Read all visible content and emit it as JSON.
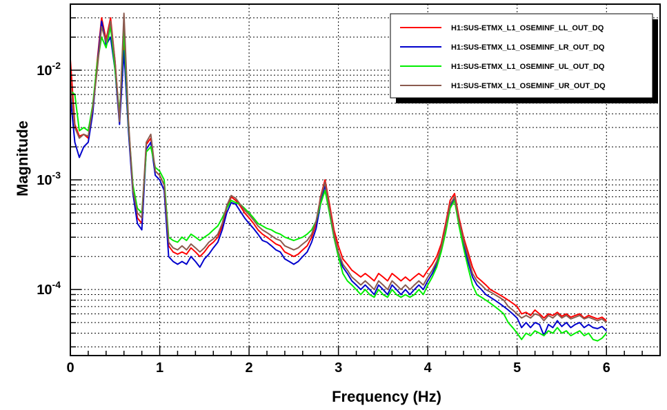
{
  "chart_data": {
    "type": "line",
    "title": "",
    "xlabel": "Frequency (Hz)",
    "ylabel": "Magnitude",
    "xlim": [
      0,
      6.6
    ],
    "ylim": [
      2.5e-05,
      0.04
    ],
    "yscale": "log",
    "grid": true,
    "legend_position": "top-right",
    "x_ticks": [
      {
        "value": 0,
        "label": "0"
      },
      {
        "value": 1,
        "label": "1"
      },
      {
        "value": 2,
        "label": "2"
      },
      {
        "value": 3,
        "label": "3"
      },
      {
        "value": 4,
        "label": "4"
      },
      {
        "value": 5,
        "label": "5"
      },
      {
        "value": 6,
        "label": "6"
      }
    ],
    "y_ticks": [
      {
        "value": 0.0001,
        "mantissa": "10",
        "exponent": "-4"
      },
      {
        "value": 0.001,
        "mantissa": "10",
        "exponent": "-3"
      },
      {
        "value": 0.01,
        "mantissa": "10",
        "exponent": "-2"
      }
    ],
    "x": [
      0.0,
      0.05,
      0.1,
      0.15,
      0.2,
      0.25,
      0.3,
      0.35,
      0.4,
      0.45,
      0.5,
      0.55,
      0.6,
      0.65,
      0.7,
      0.75,
      0.8,
      0.85,
      0.9,
      0.95,
      1.0,
      1.05,
      1.1,
      1.15,
      1.2,
      1.25,
      1.3,
      1.35,
      1.4,
      1.45,
      1.5,
      1.55,
      1.6,
      1.65,
      1.7,
      1.75,
      1.8,
      1.85,
      1.9,
      1.95,
      2.0,
      2.05,
      2.1,
      2.15,
      2.2,
      2.25,
      2.3,
      2.35,
      2.4,
      2.45,
      2.5,
      2.55,
      2.6,
      2.65,
      2.7,
      2.75,
      2.8,
      2.85,
      2.9,
      2.95,
      3.0,
      3.05,
      3.1,
      3.15,
      3.2,
      3.25,
      3.3,
      3.35,
      3.4,
      3.45,
      3.5,
      3.55,
      3.6,
      3.65,
      3.7,
      3.75,
      3.8,
      3.85,
      3.9,
      3.95,
      4.0,
      4.05,
      4.1,
      4.15,
      4.2,
      4.25,
      4.3,
      4.35,
      4.4,
      4.45,
      4.5,
      4.55,
      4.6,
      4.65,
      4.7,
      4.75,
      4.8,
      4.85,
      4.9,
      4.95,
      5.0,
      5.05,
      5.1,
      5.15,
      5.2,
      5.25,
      5.3,
      5.35,
      5.4,
      5.45,
      5.5,
      5.55,
      5.6,
      5.65,
      5.7,
      5.75,
      5.8,
      5.85,
      5.9,
      5.95,
      6.0
    ],
    "series": [
      {
        "name": "H1:SUS-ETMX_L1_OSEMINF_LL_OUT_DQ",
        "color": "#ff0000",
        "values": [
          0.0125,
          0.0032,
          0.0025,
          0.0026,
          0.0024,
          0.0045,
          0.012,
          0.03,
          0.019,
          0.03,
          0.012,
          0.0035,
          0.018,
          0.003,
          0.0008,
          0.00045,
          0.0004,
          0.0021,
          0.0024,
          0.0012,
          0.0011,
          0.0009,
          0.00025,
          0.00022,
          0.00021,
          0.00022,
          0.00021,
          0.00024,
          0.00022,
          0.0002,
          0.00022,
          0.00025,
          0.00027,
          0.0003,
          0.00038,
          0.00055,
          0.0007,
          0.00065,
          0.00058,
          0.0005,
          0.00045,
          0.0004,
          0.00035,
          0.00032,
          0.0003,
          0.00028,
          0.00026,
          0.00025,
          0.00022,
          0.00021,
          0.0002,
          0.00021,
          0.00023,
          0.00025,
          0.0003,
          0.0004,
          0.0007,
          0.001,
          0.0006,
          0.00035,
          0.00025,
          0.00019,
          0.00017,
          0.00015,
          0.00014,
          0.00013,
          0.00014,
          0.00013,
          0.00012,
          0.00014,
          0.00013,
          0.00012,
          0.00014,
          0.00013,
          0.00012,
          0.00013,
          0.00012,
          0.00013,
          0.00014,
          0.00013,
          0.00015,
          0.00017,
          0.0002,
          0.00026,
          0.0004,
          0.00065,
          0.00075,
          0.00045,
          0.0003,
          0.00022,
          0.00016,
          0.00013,
          0.00012,
          0.00011,
          0.0001,
          9.5e-05,
          9e-05,
          8.5e-05,
          8e-05,
          7.5e-05,
          7e-05,
          6e-05,
          6.2e-05,
          5.8e-05,
          6.5e-05,
          6e-05,
          5.5e-05,
          6e-05,
          5.8e-05,
          6.2e-05,
          5.7e-05,
          6e-05,
          5.6e-05,
          5.8e-05,
          6e-05,
          5.5e-05,
          5.8e-05,
          5.6e-05,
          5.4e-05,
          5.6e-05,
          5.2e-05
        ]
      },
      {
        "name": "H1:SUS-ETMX_L1_OSEMINF_LR_OUT_DQ",
        "color": "#0000cc",
        "values": [
          0.0058,
          0.0022,
          0.0016,
          0.002,
          0.0022,
          0.004,
          0.011,
          0.028,
          0.017,
          0.02,
          0.01,
          0.0032,
          0.015,
          0.0028,
          0.00075,
          0.0004,
          0.00035,
          0.0019,
          0.0022,
          0.0011,
          0.001,
          0.0008,
          0.0002,
          0.00018,
          0.00017,
          0.00018,
          0.00017,
          0.0002,
          0.00018,
          0.00016,
          0.00019,
          0.00021,
          0.00024,
          0.00027,
          0.00035,
          0.0005,
          0.00062,
          0.0006,
          0.00052,
          0.00045,
          0.0004,
          0.00036,
          0.00032,
          0.00028,
          0.00027,
          0.00025,
          0.00023,
          0.00022,
          0.00019,
          0.00018,
          0.00017,
          0.00018,
          0.0002,
          0.00022,
          0.00027,
          0.00036,
          0.0006,
          0.0009,
          0.0005,
          0.0003,
          0.0002,
          0.00016,
          0.00014,
          0.00012,
          0.00011,
          0.0001,
          0.00011,
          0.0001,
          9e-05,
          0.00011,
          0.0001,
          9e-05,
          0.00011,
          0.0001,
          9e-05,
          0.0001,
          9e-05,
          0.0001,
          0.00011,
          0.0001,
          0.00012,
          0.00014,
          0.00017,
          0.00023,
          0.00035,
          0.00058,
          0.00068,
          0.0004,
          0.00026,
          0.00018,
          0.00013,
          0.00011,
          0.0001,
          9e-05,
          8.5e-05,
          8e-05,
          7.5e-05,
          7e-05,
          6.5e-05,
          6e-05,
          5.5e-05,
          4.5e-05,
          5e-05,
          4.5e-05,
          5e-05,
          4.8e-05,
          3.8e-05,
          4.8e-05,
          4.5e-05,
          5.2e-05,
          4.6e-05,
          5e-05,
          4.5e-05,
          4.8e-05,
          5e-05,
          4.5e-05,
          4.8e-05,
          4.5e-05,
          4.4e-05,
          4.6e-05,
          4.2e-05
        ]
      },
      {
        "name": "H1:SUS-ETMX_L1_OSEMINF_UL_OUT_DQ",
        "color": "#00ee00",
        "values": [
          0.0065,
          0.006,
          0.0028,
          0.003,
          0.0028,
          0.0048,
          0.0115,
          0.02,
          0.016,
          0.025,
          0.01,
          0.004,
          0.023,
          0.0032,
          0.0009,
          0.00055,
          0.0005,
          0.0018,
          0.002,
          0.0013,
          0.0012,
          0.001,
          0.0003,
          0.00028,
          0.00027,
          0.0003,
          0.00028,
          0.00032,
          0.0003,
          0.00028,
          0.0003,
          0.00032,
          0.00035,
          0.00038,
          0.00045,
          0.00055,
          0.00065,
          0.00062,
          0.0006,
          0.00055,
          0.0005,
          0.00045,
          0.0004,
          0.00038,
          0.00036,
          0.00035,
          0.00033,
          0.00032,
          0.0003,
          0.00029,
          0.00028,
          0.00029,
          0.0003,
          0.00032,
          0.00035,
          0.00042,
          0.0006,
          0.0008,
          0.0005,
          0.0003,
          0.0002,
          0.00014,
          0.00012,
          0.00011,
          0.0001,
          9e-05,
          0.0001,
          9e-05,
          8.5e-05,
          0.0001,
          9e-05,
          8.5e-05,
          0.0001,
          9e-05,
          8.5e-05,
          9e-05,
          8.5e-05,
          9e-05,
          0.0001,
          9e-05,
          0.00011,
          0.00013,
          0.00016,
          0.00022,
          0.00033,
          0.00055,
          0.00065,
          0.00038,
          0.00024,
          0.00016,
          0.00011,
          9e-05,
          8.5e-05,
          8e-05,
          7.5e-05,
          7e-05,
          6.5e-05,
          6e-05,
          5e-05,
          4.5e-05,
          4e-05,
          3.5e-05,
          4e-05,
          3.8e-05,
          4.2e-05,
          4e-05,
          3.8e-05,
          4.2e-05,
          4e-05,
          4.5e-05,
          4e-05,
          4.2e-05,
          3.8e-05,
          4e-05,
          4.2e-05,
          3.8e-05,
          4e-05,
          3.5e-05,
          3.4e-05,
          3.6e-05,
          4e-05
        ]
      },
      {
        "name": "H1:SUS-ETMX_L1_OSEMINF_UR_OUT_DQ",
        "color": "#8b5a4e",
        "values": [
          0.008,
          0.003,
          0.0024,
          0.0026,
          0.0025,
          0.0045,
          0.01,
          0.025,
          0.018,
          0.028,
          0.012,
          0.0034,
          0.033,
          0.0035,
          0.0008,
          0.0005,
          0.00045,
          0.0022,
          0.0026,
          0.0012,
          0.0011,
          0.0009,
          0.00027,
          0.00024,
          0.00023,
          0.00025,
          0.00023,
          0.00026,
          0.00024,
          0.00022,
          0.00024,
          0.00027,
          0.00029,
          0.00032,
          0.0004,
          0.00058,
          0.00072,
          0.00068,
          0.0006,
          0.00053,
          0.00048,
          0.00043,
          0.00038,
          0.00035,
          0.00033,
          0.00031,
          0.00029,
          0.00028,
          0.00025,
          0.00024,
          0.00023,
          0.00024,
          0.00026,
          0.00028,
          0.00032,
          0.00042,
          0.00068,
          0.00095,
          0.00055,
          0.00032,
          0.00022,
          0.00017,
          0.00015,
          0.00013,
          0.00012,
          0.00011,
          0.00012,
          0.00011,
          0.0001,
          0.00012,
          0.00011,
          0.0001,
          0.00012,
          0.00011,
          0.0001,
          0.00011,
          0.0001,
          0.00011,
          0.00012,
          0.00011,
          0.00013,
          0.00015,
          0.00018,
          0.00024,
          0.00037,
          0.0006,
          0.0007,
          0.00042,
          0.00028,
          0.0002,
          0.00014,
          0.00012,
          0.00011,
          0.0001,
          9.5e-05,
          9e-05,
          8.5e-05,
          8e-05,
          7e-05,
          6.5e-05,
          6e-05,
          5.5e-05,
          5.8e-05,
          5.5e-05,
          6e-05,
          5.8e-05,
          5.2e-05,
          5.8e-05,
          5.5e-05,
          6e-05,
          5.5e-05,
          5.8e-05,
          5.4e-05,
          5.6e-05,
          5.8e-05,
          5.4e-05,
          5.6e-05,
          5.4e-05,
          5.2e-05,
          5.4e-05,
          5e-05
        ]
      }
    ]
  }
}
